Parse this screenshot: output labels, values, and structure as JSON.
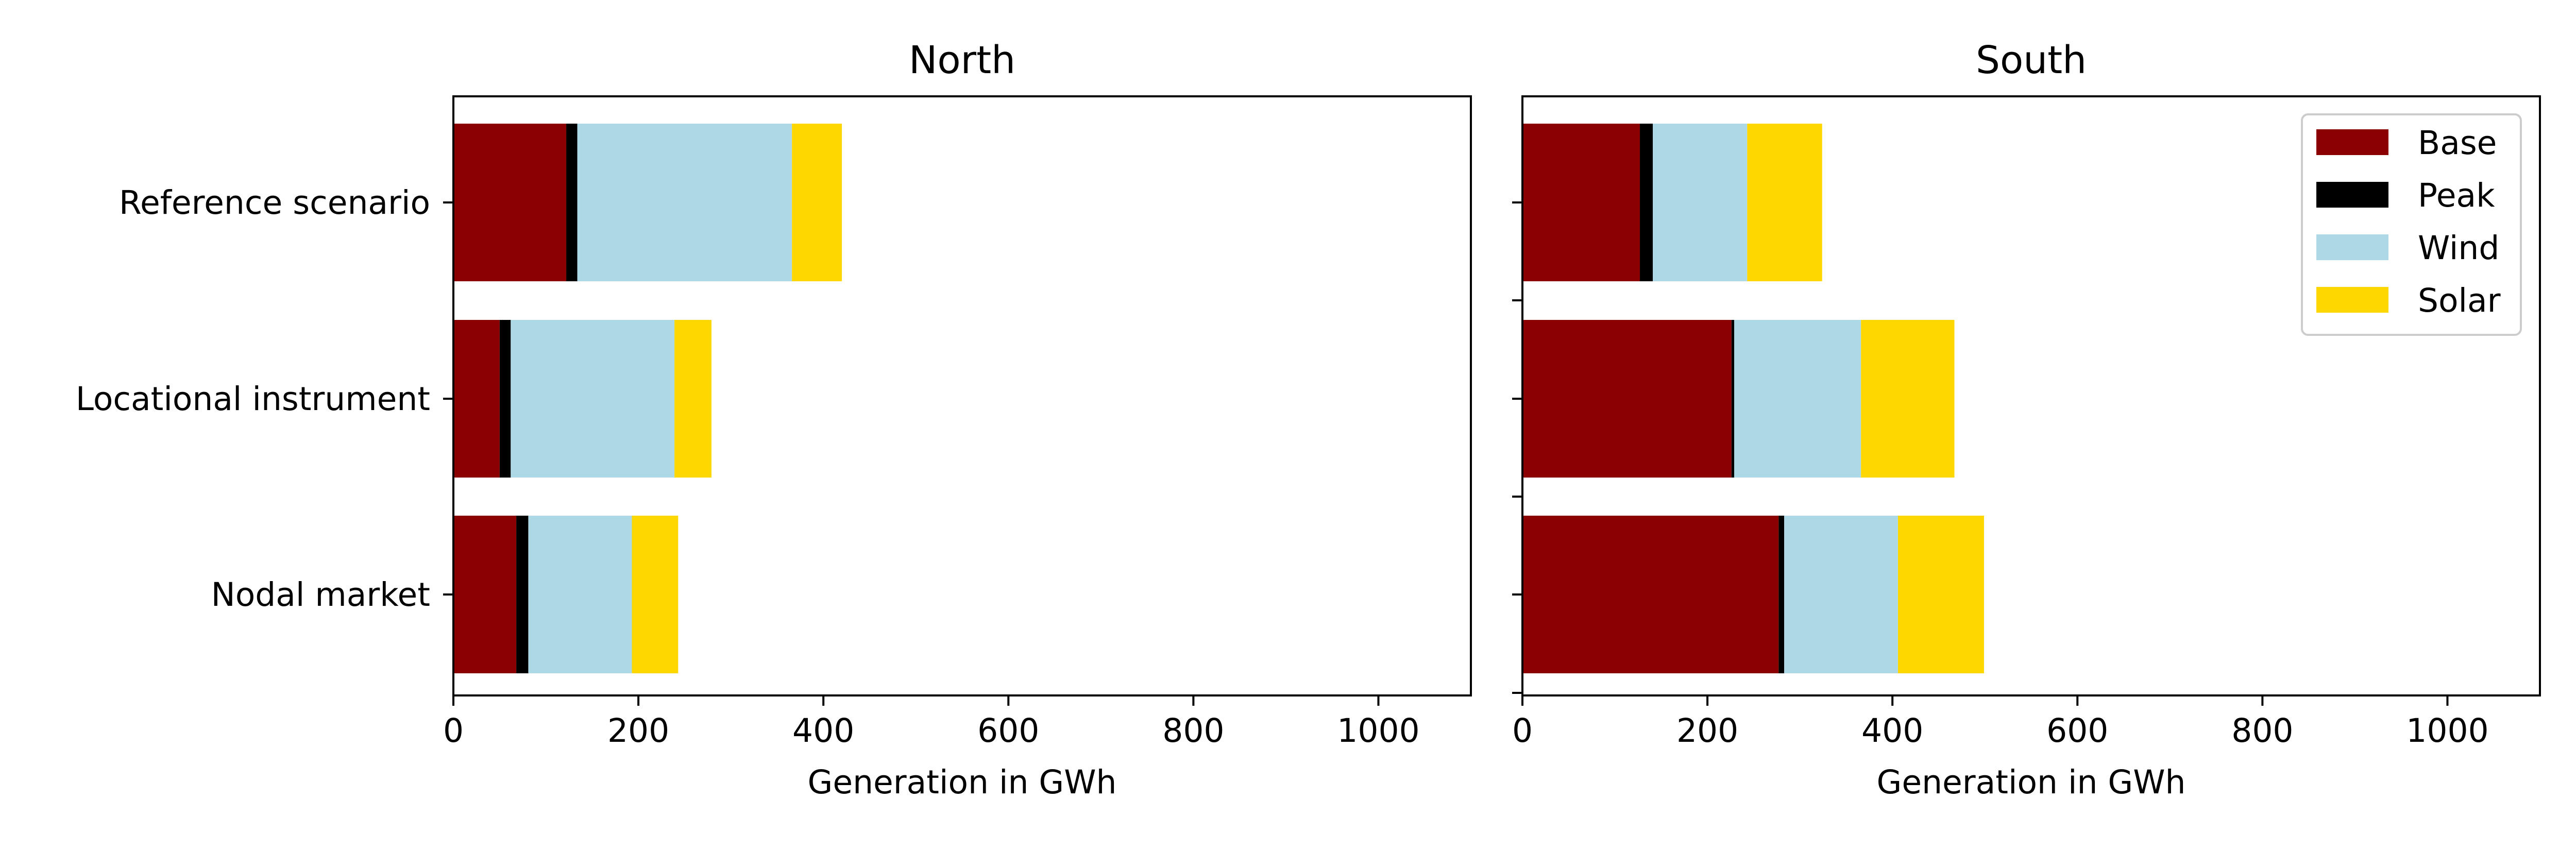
{
  "chart_data": [
    {
      "type": "bar",
      "orientation": "horizontal",
      "stacked": true,
      "title": "North",
      "xlabel": "Generation in GWh",
      "ylabel": "",
      "xlim": [
        0,
        1100
      ],
      "xticks": [
        0,
        200,
        400,
        600,
        800,
        1000
      ],
      "categories": [
        "Reference scenario",
        "Locational instrument",
        "Nodal market"
      ],
      "series": [
        {
          "name": "Base",
          "values": [
            122,
            50,
            68
          ]
        },
        {
          "name": "Peak",
          "values": [
            12,
            12,
            13
          ]
        },
        {
          "name": "Wind",
          "values": [
            232,
            177,
            112
          ]
        },
        {
          "name": "Solar",
          "values": [
            54,
            40,
            50
          ]
        }
      ],
      "grid": false,
      "show_ytick_labels": true,
      "legend": "none"
    },
    {
      "type": "bar",
      "orientation": "horizontal",
      "stacked": true,
      "title": "South",
      "xlabel": "Generation in GWh",
      "ylabel": "",
      "xlim": [
        0,
        1100
      ],
      "xticks": [
        0,
        200,
        400,
        600,
        800,
        1000
      ],
      "categories": [
        "Reference scenario",
        "Locational instrument",
        "Nodal market"
      ],
      "series": [
        {
          "name": "Base",
          "values": [
            127,
            226,
            277
          ]
        },
        {
          "name": "Peak",
          "values": [
            14,
            3,
            6
          ]
        },
        {
          "name": "Wind",
          "values": [
            102,
            137,
            123
          ]
        },
        {
          "name": "Solar",
          "values": [
            81,
            101,
            93
          ]
        }
      ],
      "grid": false,
      "show_ytick_labels": false,
      "legend": "top-right"
    }
  ],
  "colors": {
    "Base": "#8b0000",
    "Peak": "#000000",
    "Wind": "#add8e6",
    "Solar": "#ffd700"
  }
}
